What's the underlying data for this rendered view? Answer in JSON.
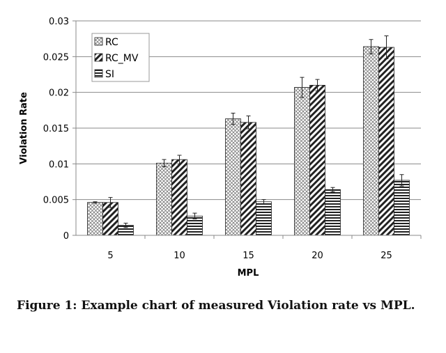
{
  "chart_data": {
    "type": "bar",
    "title": "",
    "xlabel": "MPL",
    "ylabel": "Violation Rate",
    "categories": [
      "5",
      "10",
      "15",
      "20",
      "25"
    ],
    "ylim": [
      0,
      0.03
    ],
    "yticks": [
      "0",
      "0.005",
      "0.01",
      "0.015",
      "0.02",
      "0.025",
      "0.03"
    ],
    "grid": true,
    "legend_position": "top-left",
    "series": [
      {
        "name": "RC",
        "pattern": "crosshatch",
        "values": [
          0.0046,
          0.0101,
          0.0163,
          0.0207,
          0.0264
        ],
        "errors": [
          0.0001,
          0.0005,
          0.0008,
          0.0014,
          0.001
        ]
      },
      {
        "name": "RC_MV",
        "pattern": "diagonal",
        "values": [
          0.0046,
          0.0106,
          0.0158,
          0.021,
          0.0263
        ],
        "errors": [
          0.0007,
          0.0006,
          0.0009,
          0.0008,
          0.0016
        ]
      },
      {
        "name": "SI",
        "pattern": "horizontal",
        "values": [
          0.0014,
          0.0027,
          0.0047,
          0.0064,
          0.0077
        ],
        "errors": [
          0.0003,
          0.0004,
          0.0003,
          0.0003,
          0.0008
        ]
      }
    ]
  },
  "caption": "Figure 1: Example chart of measured Violation rate vs MPL."
}
